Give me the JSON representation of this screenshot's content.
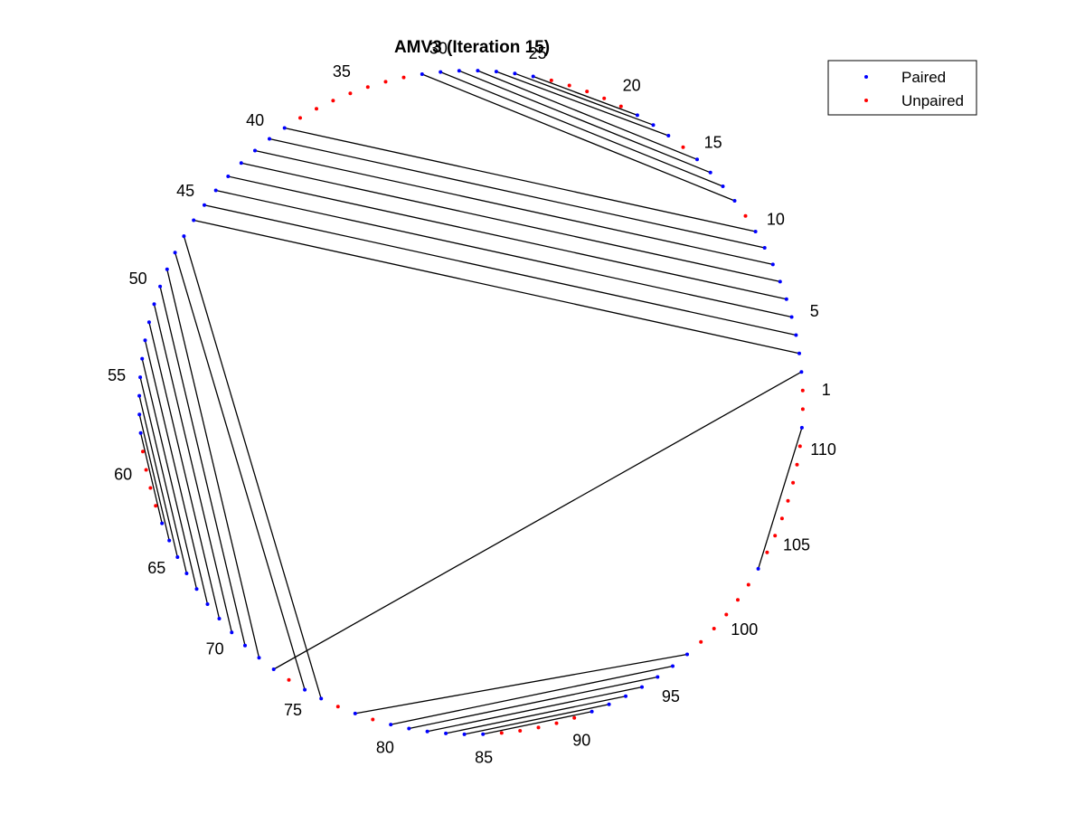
{
  "chart_data": {
    "type": "scatter",
    "subtype": "circular-pairing-plot",
    "title": "AMV3 (Iteration 15)",
    "n_positions": 112,
    "tick_labels": [
      1,
      5,
      10,
      15,
      20,
      25,
      30,
      35,
      40,
      45,
      50,
      55,
      60,
      65,
      70,
      75,
      80,
      85,
      90,
      95,
      100,
      105,
      110
    ],
    "legend": {
      "placement": "top-right",
      "entries": [
        {
          "name": "Paired",
          "color": "#0000ff"
        },
        {
          "name": "Unpaired",
          "color": "#ff0000"
        }
      ]
    },
    "colors": {
      "paired": "#0000ff",
      "unpaired": "#ff0000",
      "pair_line": "#000000"
    },
    "pairs": [
      [
        2,
        73
      ],
      [
        3,
        46
      ],
      [
        4,
        45
      ],
      [
        5,
        44
      ],
      [
        6,
        43
      ],
      [
        7,
        42
      ],
      [
        8,
        41
      ],
      [
        9,
        40
      ],
      [
        10,
        39
      ],
      [
        12,
        31
      ],
      [
        13,
        30
      ],
      [
        14,
        29
      ],
      [
        15,
        28
      ],
      [
        17,
        27
      ],
      [
        18,
        26
      ],
      [
        19,
        25
      ],
      [
        47,
        76
      ],
      [
        48,
        75
      ],
      [
        49,
        72
      ],
      [
        50,
        71
      ],
      [
        51,
        70
      ],
      [
        52,
        69
      ],
      [
        53,
        68
      ],
      [
        54,
        67
      ],
      [
        55,
        66
      ],
      [
        56,
        65
      ],
      [
        57,
        64
      ],
      [
        58,
        63
      ],
      [
        78,
        97
      ],
      [
        80,
        96
      ],
      [
        81,
        95
      ],
      [
        82,
        94
      ],
      [
        83,
        93
      ],
      [
        84,
        92
      ],
      [
        85,
        91
      ],
      [
        103,
        111
      ]
    ]
  }
}
